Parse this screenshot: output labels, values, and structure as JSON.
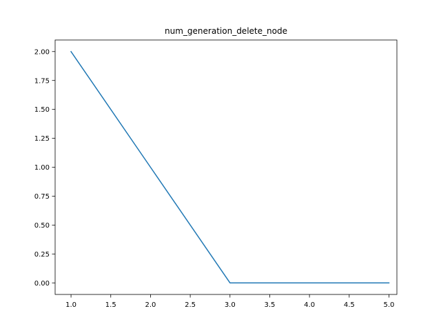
{
  "chart_data": {
    "type": "line",
    "title": "num_generation_delete_node",
    "xlabel": "",
    "ylabel": "",
    "xlim": [
      0.8,
      5.1
    ],
    "ylim": [
      -0.1,
      2.1
    ],
    "xticks": [
      1.0,
      1.5,
      2.0,
      2.5,
      3.0,
      3.5,
      4.0,
      4.5,
      5.0
    ],
    "yticks": [
      0.0,
      0.25,
      0.5,
      0.75,
      1.0,
      1.25,
      1.5,
      1.75,
      2.0
    ],
    "xtick_labels": [
      "1.0",
      "1.5",
      "2.0",
      "2.5",
      "3.0",
      "3.5",
      "4.0",
      "4.5",
      "5.0"
    ],
    "ytick_labels": [
      "0.00",
      "0.25",
      "0.50",
      "0.75",
      "1.00",
      "1.25",
      "1.50",
      "1.75",
      "2.00"
    ],
    "grid": false,
    "series": [
      {
        "color": "#1f77b4",
        "x": [
          1,
          2,
          3,
          4,
          5
        ],
        "y": [
          2,
          1,
          0,
          0,
          0
        ]
      }
    ]
  }
}
